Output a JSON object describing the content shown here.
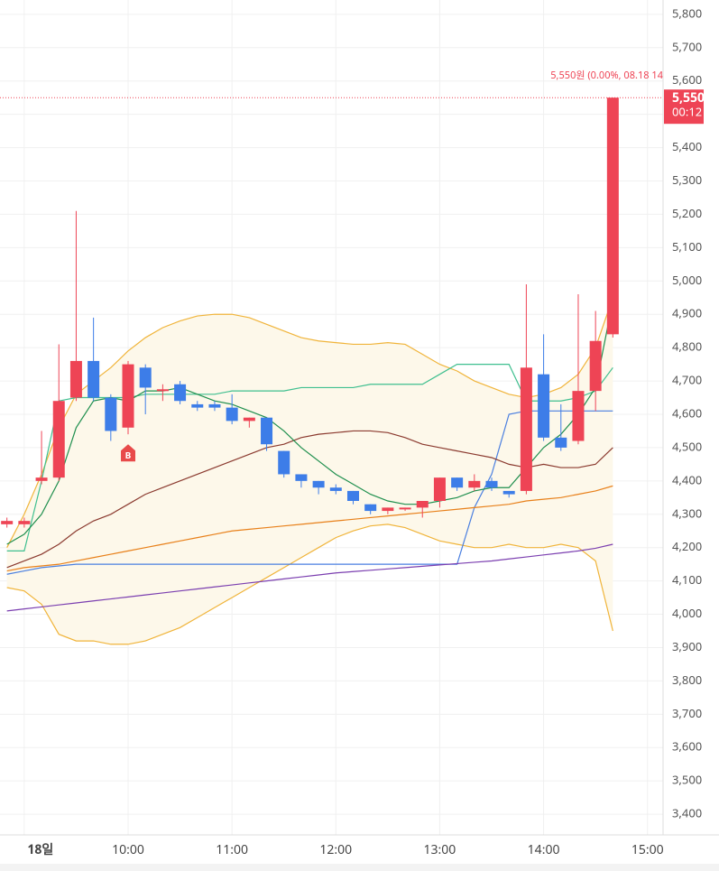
{
  "chart_data": {
    "type": "candlestick",
    "x": [
      "08:50",
      "09:00",
      "09:10",
      "09:20",
      "09:30",
      "09:40",
      "09:50",
      "10:00",
      "10:10",
      "10:20",
      "10:30",
      "10:40",
      "10:50",
      "11:00",
      "11:10",
      "11:20",
      "11:30",
      "11:40",
      "11:50",
      "12:00",
      "12:10",
      "12:20",
      "12:30",
      "12:40",
      "12:50",
      "13:00",
      "13:10",
      "13:20",
      "13:30",
      "13:40",
      "13:50",
      "14:00",
      "14:10",
      "14:20",
      "14:30",
      "14:40"
    ],
    "open": [
      4270,
      4270,
      4400,
      4410,
      4650,
      4760,
      4650,
      4560,
      4740,
      4670,
      4690,
      4630,
      4630,
      4620,
      4580,
      4590,
      4490,
      4420,
      4400,
      4380,
      4370,
      4330,
      4310,
      4320,
      4320,
      4340,
      4410,
      4380,
      4400,
      4370,
      4370,
      4720,
      4530,
      4520,
      4670,
      4840
    ],
    "high": [
      4290,
      4290,
      4550,
      4810,
      5210,
      4890,
      4660,
      4760,
      4750,
      4690,
      4700,
      4640,
      4640,
      4660,
      4590,
      4590,
      4490,
      4420,
      4400,
      4390,
      4370,
      4330,
      4320,
      4320,
      4340,
      4410,
      4410,
      4420,
      4410,
      4370,
      4990,
      4840,
      4630,
      4960,
      4910,
      5550
    ],
    "low": [
      4260,
      4260,
      4390,
      4400,
      4640,
      4640,
      4520,
      4540,
      4600,
      4640,
      4630,
      4610,
      4610,
      4570,
      4560,
      4490,
      4410,
      4380,
      4360,
      4360,
      4330,
      4300,
      4300,
      4310,
      4290,
      4320,
      4370,
      4370,
      4370,
      4350,
      4360,
      4520,
      4490,
      4510,
      4610,
      4830
    ],
    "close": [
      4280,
      4280,
      4410,
      4640,
      4760,
      4650,
      4550,
      4750,
      4680,
      4675,
      4640,
      4620,
      4620,
      4580,
      4590,
      4510,
      4420,
      4400,
      4380,
      4370,
      4340,
      4310,
      4320,
      4320,
      4340,
      4410,
      4380,
      4400,
      4380,
      4360,
      4740,
      4530,
      4500,
      4670,
      4820,
      5550
    ],
    "up_color": "#ee4455",
    "down_color": "#3d7de8",
    "band_fill": "#fdf8ea",
    "overlays": [
      {
        "color": "#f0b43a",
        "values": [
          4200,
          4300,
          4420,
          4560,
          4660,
          4700,
          4740,
          4790,
          4830,
          4860,
          4880,
          4895,
          4900,
          4900,
          4890,
          4870,
          4850,
          4830,
          4820,
          4815,
          4810,
          4810,
          4815,
          4810,
          4780,
          4750,
          4730,
          4700,
          4680,
          4660,
          4650,
          4660,
          4680,
          4720,
          4800,
          4950
        ]
      },
      {
        "color": "#f0b43a",
        "values": [
          4080,
          4070,
          4030,
          3940,
          3920,
          3920,
          3910,
          3910,
          3920,
          3940,
          3960,
          3990,
          4020,
          4050,
          4080,
          4110,
          4140,
          4170,
          4200,
          4230,
          4250,
          4265,
          4270,
          4260,
          4240,
          4220,
          4210,
          4200,
          4200,
          4210,
          4200,
          4200,
          4210,
          4200,
          4160,
          3950
        ]
      },
      {
        "color": "#4a7fe0",
        "values": [
          4120,
          4130,
          4140,
          4145,
          4150,
          4150,
          4150,
          4150,
          4150,
          4150,
          4150,
          4150,
          4150,
          4150,
          4150,
          4150,
          4150,
          4150,
          4150,
          4150,
          4150,
          4150,
          4150,
          4150,
          4150,
          4150,
          4150,
          4320,
          4420,
          4600,
          4610,
          4610,
          4610,
          4610,
          4610,
          4610
        ]
      },
      {
        "color": "#7b3fb0",
        "values": [
          4010,
          4016,
          4022,
          4028,
          4034,
          4040,
          4046,
          4052,
          4058,
          4064,
          4070,
          4076,
          4082,
          4088,
          4094,
          4100,
          4106,
          4112,
          4118,
          4124,
          4128,
          4132,
          4136,
          4140,
          4144,
          4148,
          4152,
          4156,
          4160,
          4166,
          4172,
          4178,
          4184,
          4190,
          4198,
          4210
        ]
      },
      {
        "color": "#e8801a",
        "values": [
          4130,
          4140,
          4145,
          4150,
          4160,
          4170,
          4180,
          4190,
          4200,
          4210,
          4220,
          4230,
          4240,
          4250,
          4255,
          4260,
          4265,
          4270,
          4275,
          4280,
          4285,
          4290,
          4295,
          4300,
          4305,
          4310,
          4315,
          4320,
          4325,
          4330,
          4340,
          4345,
          4350,
          4360,
          4370,
          4385
        ]
      },
      {
        "color": "#8b3a2f",
        "values": [
          4140,
          4160,
          4180,
          4210,
          4250,
          4280,
          4300,
          4330,
          4360,
          4380,
          4400,
          4420,
          4440,
          4460,
          4480,
          4500,
          4510,
          4530,
          4540,
          4545,
          4550,
          4550,
          4545,
          4530,
          4510,
          4500,
          4490,
          4480,
          4470,
          4450,
          4440,
          4450,
          4440,
          4440,
          4450,
          4500
        ]
      },
      {
        "color": "#3fbf8f",
        "values": [
          4190,
          4190,
          4400,
          4640,
          4650,
          4650,
          4650,
          4650,
          4660,
          4660,
          4660,
          4660,
          4660,
          4670,
          4670,
          4670,
          4670,
          4680,
          4680,
          4680,
          4680,
          4690,
          4690,
          4690,
          4690,
          4720,
          4750,
          4750,
          4750,
          4750,
          4640,
          4640,
          4640,
          4650,
          4670,
          4740
        ]
      },
      {
        "color": "#1f8f4e",
        "values": [
          4210,
          4240,
          4300,
          4400,
          4560,
          4640,
          4650,
          4640,
          4670,
          4670,
          4680,
          4660,
          4640,
          4630,
          4610,
          4590,
          4550,
          4500,
          4460,
          4420,
          4390,
          4360,
          4340,
          4330,
          4330,
          4340,
          4350,
          4370,
          4380,
          4380,
          4440,
          4500,
          4540,
          4600,
          4680,
          4940
        ]
      }
    ],
    "ylim": [
      3338,
      5843
    ],
    "yticks": [
      {
        "value": 3400,
        "label": "3,400"
      },
      {
        "value": 3500,
        "label": "3,500"
      },
      {
        "value": 3600,
        "label": "3,600"
      },
      {
        "value": 3700,
        "label": "3,700"
      },
      {
        "value": 3800,
        "label": "3,800"
      },
      {
        "value": 3900,
        "label": "3,900"
      },
      {
        "value": 4000,
        "label": "4,000"
      },
      {
        "value": 4100,
        "label": "4,100"
      },
      {
        "value": 4200,
        "label": "4,200"
      },
      {
        "value": 4300,
        "label": "4,300"
      },
      {
        "value": 4400,
        "label": "4,400"
      },
      {
        "value": 4500,
        "label": "4,500"
      },
      {
        "value": 4600,
        "label": "4,600"
      },
      {
        "value": 4700,
        "label": "4,700"
      },
      {
        "value": 4800,
        "label": "4,800"
      },
      {
        "value": 4900,
        "label": "4,900"
      },
      {
        "value": 5000,
        "label": "5,000"
      },
      {
        "value": 5100,
        "label": "5,100"
      },
      {
        "value": 5200,
        "label": "5,200"
      },
      {
        "value": 5300,
        "label": "5,300"
      },
      {
        "value": 5400,
        "label": "5,400"
      },
      {
        "value": 5500,
        "label": "5,500"
      },
      {
        "value": 5600,
        "label": "5,600"
      },
      {
        "value": 5700,
        "label": "5,700"
      },
      {
        "value": 5800,
        "label": "5,800"
      }
    ],
    "xlim": [
      "08:46",
      "15:09"
    ],
    "xticks": [
      {
        "value": "09:00",
        "label": "18일"
      },
      "10:00",
      "11:00",
      "12:00",
      "13:00",
      "14:00",
      "15:00"
    ],
    "grid": true,
    "last_price": {
      "value": 5550,
      "label": "5,550",
      "color": "#ee4455"
    },
    "countdown": "00:12",
    "last_price_annotation": "5,550원 (0.00%, 08.18 14",
    "signal": {
      "x": "10:00",
      "y": 4480,
      "label": "B",
      "color": "#e84a4a"
    }
  }
}
